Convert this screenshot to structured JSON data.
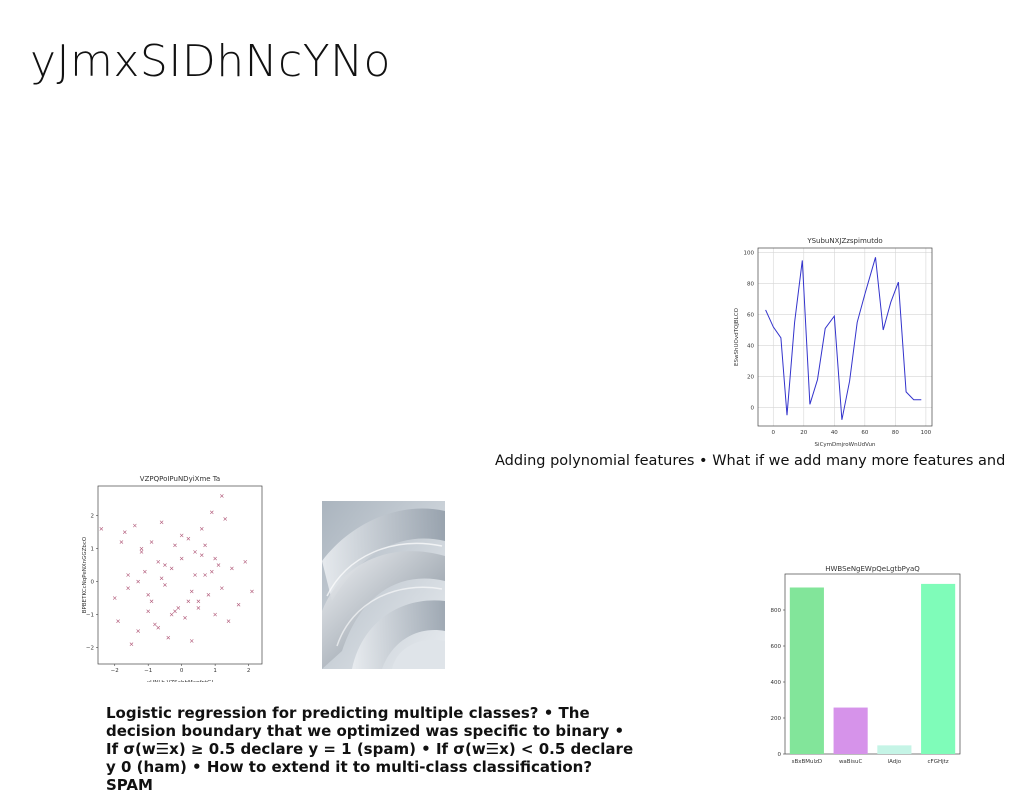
{
  "slide": {
    "title": "yJmxSIDhNcYNo",
    "caption": "Adding polynomial features • What if we add many more features and",
    "body_text": "Logistic regression for predicting multiple classes? • The decision boundary that we optimized was specific to binary • If σ(w☰x) ≥ 0.5 declare y = 1 (spam) • If σ(w☰x) < 0.5 declare y 0 (ham) • How to extend it to multi-class classification? SPAM"
  },
  "chart_data": [
    {
      "type": "line",
      "title": "YSubuNXJZzspimutdo",
      "xlabel": "SiCymDmjroWnUdVun",
      "ylabel": "ESwShUOvdTQJBLCO",
      "xlim": [
        -10,
        104
      ],
      "ylim": [
        -12,
        103
      ],
      "xticks": [
        0,
        20,
        40,
        60,
        80,
        100
      ],
      "yticks": [
        0,
        20,
        40,
        60,
        80,
        100
      ],
      "grid": true,
      "color": "#3333cc",
      "x": [
        -5,
        0,
        5,
        9,
        14,
        19,
        24,
        29,
        34,
        40,
        45,
        50,
        55,
        60,
        67,
        72,
        77,
        82,
        87,
        92,
        97
      ],
      "y": [
        63,
        52,
        45,
        -5,
        55,
        95,
        2,
        18,
        51,
        59,
        -8,
        17,
        55,
        73,
        97,
        50,
        68,
        81,
        10,
        5,
        5
      ]
    },
    {
      "type": "scatter",
      "title": "VZPQPoIPuNDyiXme Ta",
      "xlabel": "xUNLb VZSabbMapfntGJ",
      "ylabel": "BPBETKCcNqPeNXnGGZbcO",
      "xlim": [
        -2.5,
        2.4
      ],
      "ylim": [
        -2.5,
        2.9
      ],
      "xticks": [
        -2,
        -1,
        0,
        1,
        2
      ],
      "yticks": [
        -2,
        -1,
        0,
        1,
        2
      ],
      "grid": false,
      "color": "#b05878",
      "x": [
        -2.4,
        -2.0,
        -1.9,
        -1.7,
        -1.6,
        -1.5,
        -1.4,
        -1.3,
        -1.2,
        -1.1,
        -1.0,
        -0.9,
        -0.8,
        -0.7,
        -0.6,
        -0.5,
        -0.4,
        -0.3,
        -0.2,
        -0.1,
        0.0,
        0.1,
        0.2,
        0.3,
        0.4,
        0.5,
        0.6,
        0.7,
        0.8,
        0.9,
        1.0,
        1.1,
        1.2,
        1.3,
        1.5,
        1.7,
        1.9,
        2.1,
        -1.6,
        -1.2,
        -0.9,
        -0.6,
        -0.3,
        0.0,
        0.3,
        0.6,
        0.9,
        1.2,
        -1.0,
        -0.5,
        0.2,
        0.7,
        1.4,
        -1.8,
        -0.2,
        0.4,
        1.0,
        -0.7,
        0.5,
        -1.3
      ],
      "y": [
        1.6,
        -0.5,
        -1.2,
        1.5,
        0.2,
        -1.9,
        1.7,
        -1.5,
        0.9,
        0.3,
        -0.9,
        1.2,
        -1.3,
        0.6,
        1.8,
        -0.1,
        -1.7,
        0.4,
        1.1,
        -0.8,
        0.7,
        -1.1,
        1.3,
        -0.3,
        0.9,
        -0.6,
        1.6,
        0.2,
        -0.4,
        2.1,
        -1.0,
        0.5,
        2.6,
        1.9,
        0.4,
        -0.7,
        0.6,
        -0.3,
        -0.2,
        1.0,
        -0.6,
        0.1,
        -1.0,
        1.4,
        -1.8,
        0.8,
        0.3,
        -0.2,
        -0.4,
        0.5,
        -0.6,
        1.1,
        -1.2,
        1.2,
        -0.9,
        0.2,
        0.7,
        -1.4,
        -0.8,
        0.0
      ]
    },
    {
      "type": "bar",
      "title": "HWBSeNgEWpQeLgtbPyaQ",
      "categories": [
        "sBxBMulzD",
        "waBisuC",
        "lAdjo",
        "cFGHjtz"
      ],
      "values": [
        925,
        258,
        48,
        945
      ],
      "colors": [
        "#82e59a",
        "#d693ea",
        "#c5f4e6",
        "#7ffcb9"
      ],
      "ylim": [
        0,
        1000
      ],
      "yticks": [
        0,
        200,
        400,
        600,
        800
      ],
      "grid": false
    }
  ]
}
